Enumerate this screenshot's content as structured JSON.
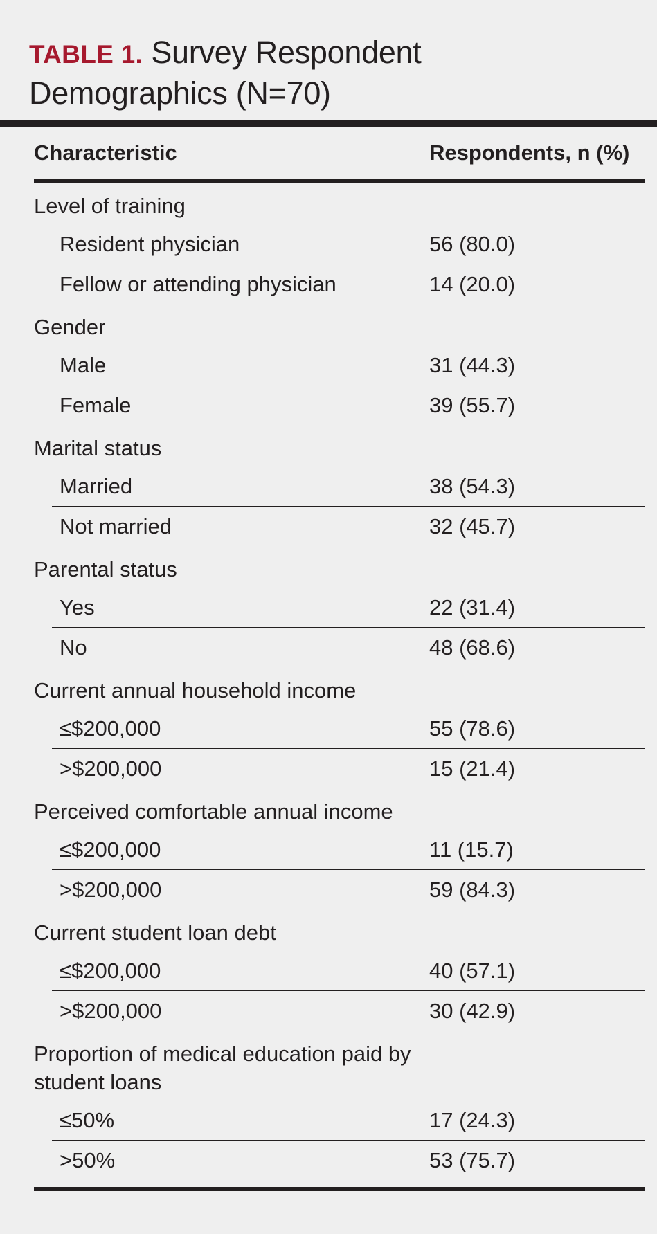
{
  "title": {
    "label": "TABLE 1.",
    "text_line1": "Survey Respondent",
    "text_line2": "Demographics (N=70)"
  },
  "header": {
    "characteristic": "Characteristic",
    "respondents": "Respondents, n (%)"
  },
  "categories": [
    {
      "label": "Level of training",
      "rows": [
        {
          "label": "Resident physician",
          "value": "56 (80.0)"
        },
        {
          "label": "Fellow or attending physician",
          "value": "14 (20.0)"
        }
      ]
    },
    {
      "label": "Gender",
      "rows": [
        {
          "label": "Male",
          "value": "31 (44.3)"
        },
        {
          "label": "Female",
          "value": "39 (55.7)"
        }
      ]
    },
    {
      "label": "Marital status",
      "rows": [
        {
          "label": "Married",
          "value": "38 (54.3)"
        },
        {
          "label": "Not married",
          "value": "32 (45.7)"
        }
      ]
    },
    {
      "label": "Parental status",
      "rows": [
        {
          "label": "Yes",
          "value": "22 (31.4)"
        },
        {
          "label": "No",
          "value": "48 (68.6)"
        }
      ]
    },
    {
      "label": "Current annual household income",
      "rows": [
        {
          "label": "≤$200,000",
          "value": "55 (78.6)"
        },
        {
          "label": ">$200,000",
          "value": "15 (21.4)"
        }
      ]
    },
    {
      "label": "Perceived comfortable annual income",
      "rows": [
        {
          "label": "≤$200,000",
          "value": "11 (15.7)"
        },
        {
          "label": ">$200,000",
          "value": "59 (84.3)"
        }
      ]
    },
    {
      "label": "Current student loan debt",
      "rows": [
        {
          "label": "≤$200,000",
          "value": "40 (57.1)"
        },
        {
          "label": ">$200,000",
          "value": "30 (42.9)"
        }
      ]
    },
    {
      "label": "Proportion of medical education paid by student loans",
      "rows": [
        {
          "label": "≤50%",
          "value": "17 (24.3)"
        },
        {
          "label": ">50%",
          "value": "53 (75.7)"
        }
      ]
    }
  ]
}
